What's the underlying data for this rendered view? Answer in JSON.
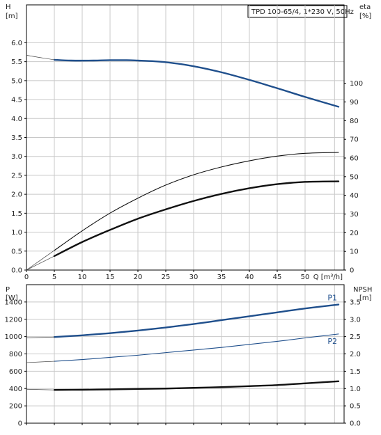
{
  "colors": {
    "blue": "#1f4f8c",
    "black": "#111111",
    "grid": "#c8c8c8"
  },
  "chart_data": [
    {
      "type": "line",
      "title": "TPD 100-65/4, 1*230 V, 50Hz",
      "xlabel": "Q [m³/h]",
      "xlabel_unit": "",
      "xticks": [
        0,
        5,
        10,
        15,
        20,
        25,
        30,
        35,
        40,
        45,
        50
      ],
      "xlim": [
        0,
        57
      ],
      "left_axis": {
        "label": "H",
        "unit": "[m]",
        "lim": [
          0,
          7.0
        ],
        "ticks": [
          "0.0",
          "0.5",
          "1.0",
          "1.5",
          "2.0",
          "2.5",
          "3.0",
          "3.5",
          "4.0",
          "4.5",
          "5.0",
          "5.5",
          "6.0"
        ]
      },
      "right_axis": {
        "label": "eta",
        "unit": "[%]",
        "lim": [
          0,
          142
        ],
        "ticks": [
          "0",
          "10",
          "20",
          "30",
          "40",
          "50",
          "60",
          "70",
          "80",
          "90",
          "100"
        ]
      },
      "grid": true,
      "series": [
        {
          "axis": "left",
          "style": "blue-thick",
          "x": [
            5,
            8,
            12,
            15,
            18,
            20,
            23,
            26,
            30,
            35,
            40,
            45,
            50,
            56
          ],
          "y": [
            5.55,
            5.53,
            5.53,
            5.54,
            5.54,
            5.53,
            5.51,
            5.47,
            5.38,
            5.22,
            5.02,
            4.8,
            4.57,
            4.31
          ]
        },
        {
          "axis": "left",
          "style": "thin-extrapolation",
          "x": [
            0,
            2,
            5
          ],
          "y": [
            5.67,
            5.62,
            5.55
          ]
        },
        {
          "axis": "right",
          "style": "black-thin",
          "x": [
            5,
            10,
            15,
            20,
            25,
            30,
            35,
            40,
            45,
            50,
            56
          ],
          "y": [
            10.5,
            21,
            30.5,
            38.5,
            45.5,
            51,
            55.2,
            58.5,
            61,
            62.5,
            63
          ]
        },
        {
          "axis": "right",
          "style": "black-thick",
          "x": [
            5,
            10,
            15,
            20,
            25,
            30,
            35,
            40,
            45,
            50,
            56
          ],
          "y": [
            7.5,
            15,
            21.5,
            27.5,
            32.5,
            37,
            40.8,
            43.8,
            46,
            47.2,
            47.5
          ]
        },
        {
          "axis": "right",
          "style": "thin-extrapolation",
          "x": [
            0,
            5
          ],
          "y": [
            0,
            10.5
          ]
        },
        {
          "axis": "right",
          "style": "thin-extrapolation",
          "x": [
            0,
            5
          ],
          "y": [
            0,
            7.5
          ]
        }
      ]
    },
    {
      "type": "line",
      "xticks": [
        0,
        5,
        10,
        15,
        20,
        25,
        30,
        35,
        40,
        45,
        50
      ],
      "xlim": [
        0,
        57
      ],
      "left_axis": {
        "label": "P",
        "unit": "[W]",
        "lim": [
          0,
          1600
        ],
        "ticks": [
          "0",
          "200",
          "400",
          "600",
          "800",
          "1000",
          "1200",
          "1400"
        ]
      },
      "right_axis": {
        "label": "NPSH",
        "unit": "[m]",
        "lim": [
          0,
          4.0
        ],
        "ticks": [
          "0.0",
          "0.5",
          "1.0",
          "1.5",
          "2.0",
          "2.5",
          "3.0",
          "3.5"
        ]
      },
      "grid": true,
      "series": [
        {
          "name": "P1",
          "axis": "left",
          "style": "blue-thick",
          "x": [
            5,
            10,
            15,
            20,
            25,
            30,
            35,
            40,
            45,
            50,
            56
          ],
          "y": [
            995,
            1015,
            1040,
            1070,
            1105,
            1145,
            1190,
            1235,
            1280,
            1325,
            1370
          ]
        },
        {
          "name": "P2",
          "axis": "left",
          "style": "blue-thin",
          "x": [
            5,
            10,
            15,
            20,
            25,
            30,
            35,
            40,
            45,
            50,
            56
          ],
          "y": [
            715,
            735,
            760,
            785,
            815,
            845,
            875,
            910,
            945,
            985,
            1030
          ]
        },
        {
          "axis": "right",
          "style": "black-thick",
          "x": [
            5,
            10,
            15,
            20,
            25,
            30,
            35,
            40,
            45,
            50,
            56
          ],
          "y": [
            0.96,
            0.965,
            0.975,
            0.99,
            1.0,
            1.02,
            1.04,
            1.07,
            1.1,
            1.15,
            1.21
          ]
        },
        {
          "axis": "left",
          "style": "thin-extrapolation",
          "x": [
            0,
            5
          ],
          "y": [
            985,
            995
          ]
        },
        {
          "axis": "left",
          "style": "thin-extrapolation",
          "x": [
            0,
            5
          ],
          "y": [
            700,
            715
          ]
        },
        {
          "axis": "right",
          "style": "thin-extrapolation",
          "x": [
            0,
            5
          ],
          "y": [
            0.98,
            0.96
          ]
        }
      ]
    }
  ]
}
